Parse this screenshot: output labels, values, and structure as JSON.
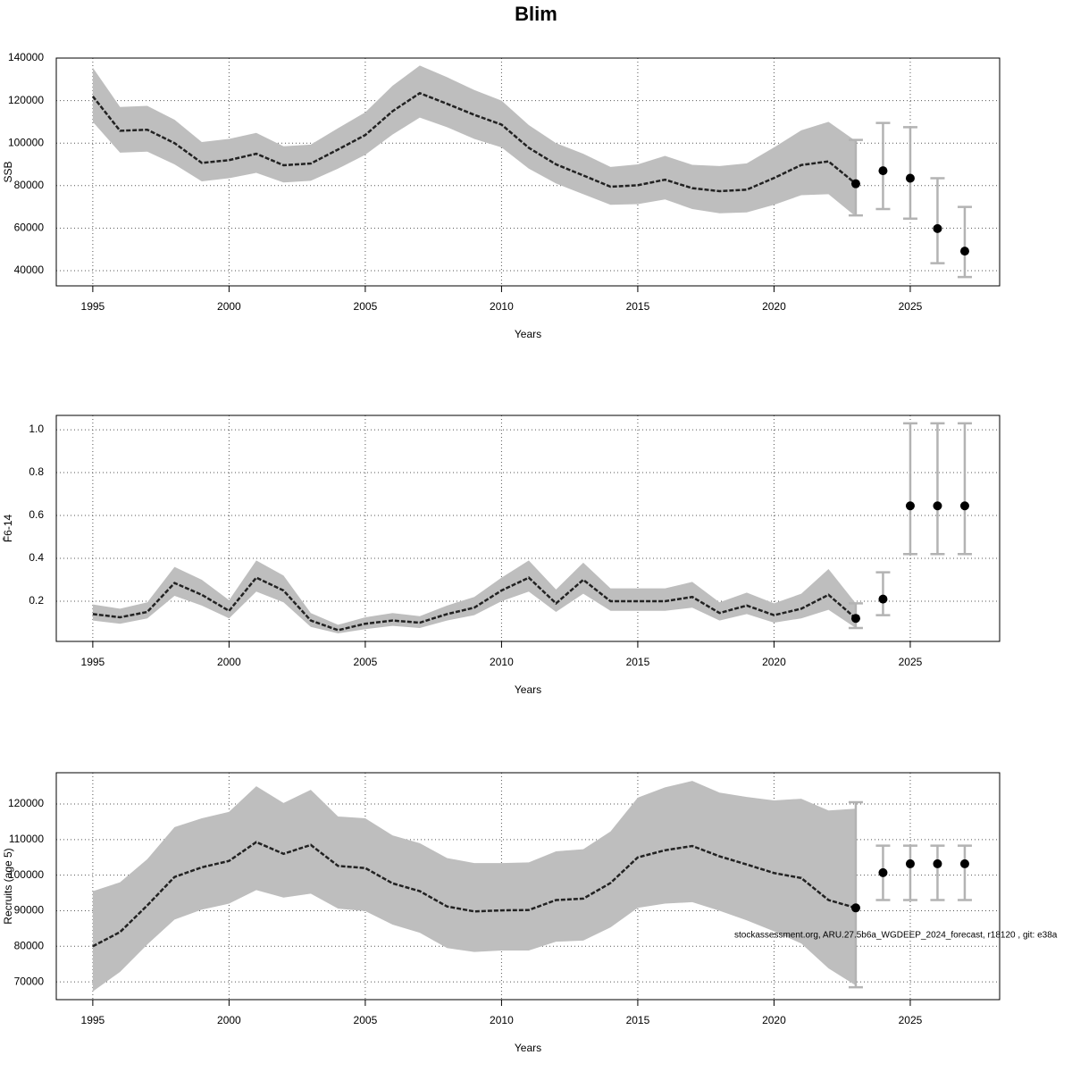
{
  "title": "Blim",
  "chart_data": [
    {
      "type": "line",
      "xlabel": "Years",
      "ylabel": "SSB",
      "x": [
        1995,
        1996,
        1997,
        1998,
        1999,
        2000,
        2001,
        2002,
        2003,
        2004,
        2005,
        2006,
        2007,
        2008,
        2009,
        2010,
        2011,
        2012,
        2013,
        2014,
        2015,
        2016,
        2017,
        2018,
        2019,
        2020,
        2021,
        2022,
        2023
      ],
      "values": [
        122000,
        105800,
        106300,
        100000,
        90700,
        92000,
        95000,
        89600,
        90400,
        97000,
        103800,
        115000,
        123500,
        118500,
        113300,
        108700,
        97800,
        90000,
        84800,
        79500,
        80200,
        82800,
        78800,
        77400,
        78100,
        83600,
        89700,
        91400,
        80900
      ],
      "upper": [
        135500,
        117000,
        117500,
        111000,
        100500,
        102000,
        104800,
        98500,
        99300,
        107000,
        114500,
        127000,
        136500,
        131000,
        125000,
        120000,
        108500,
        100000,
        95000,
        88800,
        90000,
        94000,
        89800,
        89200,
        90500,
        98000,
        106000,
        110000,
        101000
      ],
      "lower": [
        110000,
        95500,
        96000,
        90000,
        82000,
        83500,
        86000,
        81500,
        82300,
        88000,
        94500,
        104000,
        112000,
        107500,
        102000,
        98000,
        88000,
        81000,
        76000,
        71000,
        71300,
        73500,
        69000,
        67000,
        67400,
        71000,
        75500,
        76000,
        65500
      ],
      "forecast": {
        "x": [
          2023,
          2024,
          2025,
          2026,
          2027
        ],
        "values": [
          80900,
          87000,
          83500,
          59800,
          49200
        ],
        "lower": [
          66000,
          69000,
          64500,
          43500,
          37000
        ],
        "upper": [
          101500,
          109500,
          107500,
          83500,
          70000
        ]
      },
      "line_color": "#222222",
      "band_color": "#bebebe",
      "errorbar_color": "#b3b3b3",
      "point_color": "#000000",
      "xlim": [
        1993.66,
        2028.28
      ],
      "xticks": [
        1995,
        2000,
        2005,
        2010,
        2015,
        2020,
        2025
      ],
      "ylim": [
        32860,
        140000
      ],
      "yticks": [
        40000,
        60000,
        80000,
        100000,
        120000,
        140000
      ],
      "grid": true
    },
    {
      "type": "line",
      "xlabel": "Years",
      "ylabel": "F̄6-14",
      "x": [
        1995,
        1996,
        1997,
        1998,
        1999,
        2000,
        2001,
        2002,
        2003,
        2004,
        2005,
        2006,
        2007,
        2008,
        2009,
        2010,
        2011,
        2012,
        2013,
        2014,
        2015,
        2016,
        2017,
        2018,
        2019,
        2020,
        2021,
        2022,
        2023
      ],
      "values": [
        0.14,
        0.125,
        0.15,
        0.285,
        0.23,
        0.155,
        0.31,
        0.25,
        0.11,
        0.065,
        0.095,
        0.11,
        0.1,
        0.14,
        0.17,
        0.25,
        0.31,
        0.19,
        0.3,
        0.2,
        0.2,
        0.2,
        0.22,
        0.145,
        0.18,
        0.135,
        0.165,
        0.23,
        0.12
      ],
      "upper": [
        0.185,
        0.165,
        0.195,
        0.36,
        0.3,
        0.205,
        0.39,
        0.32,
        0.145,
        0.09,
        0.125,
        0.145,
        0.13,
        0.18,
        0.22,
        0.31,
        0.39,
        0.255,
        0.38,
        0.26,
        0.26,
        0.26,
        0.29,
        0.195,
        0.24,
        0.19,
        0.235,
        0.35,
        0.19
      ],
      "lower": [
        0.11,
        0.095,
        0.12,
        0.225,
        0.18,
        0.12,
        0.245,
        0.195,
        0.08,
        0.05,
        0.07,
        0.085,
        0.075,
        0.11,
        0.135,
        0.2,
        0.245,
        0.15,
        0.235,
        0.155,
        0.155,
        0.155,
        0.17,
        0.11,
        0.14,
        0.1,
        0.12,
        0.16,
        0.075
      ],
      "forecast": {
        "x": [
          2023,
          2024,
          2025,
          2026,
          2027
        ],
        "values": [
          0.12,
          0.21,
          0.645,
          0.645,
          0.645
        ],
        "lower": [
          0.075,
          0.135,
          0.42,
          0.42,
          0.42
        ],
        "upper": [
          0.19,
          0.335,
          1.03,
          1.03,
          1.03
        ]
      },
      "line_color": "#222222",
      "band_color": "#bebebe",
      "errorbar_color": "#b3b3b3",
      "point_color": "#000000",
      "xlim": [
        1993.66,
        2028.28
      ],
      "xticks": [
        1995,
        2000,
        2005,
        2010,
        2015,
        2020,
        2025
      ],
      "ylim": [
        0.0125,
        1.067
      ],
      "yticks": [
        0.2,
        0.4,
        0.6,
        0.8,
        {
          "value": 1,
          "label": "1.0"
        }
      ],
      "grid": true
    },
    {
      "type": "line",
      "xlabel": "Years",
      "ylabel": "Recruits (age 5)",
      "x": [
        1995,
        1996,
        1997,
        1998,
        1999,
        2000,
        2001,
        2002,
        2003,
        2004,
        2005,
        2006,
        2007,
        2008,
        2009,
        2010,
        2011,
        2012,
        2013,
        2014,
        2015,
        2016,
        2017,
        2018,
        2019,
        2020,
        2021,
        2022,
        2023
      ],
      "values": [
        80000,
        84000,
        91500,
        99500,
        102200,
        104000,
        109300,
        106000,
        108500,
        102600,
        102000,
        97700,
        95500,
        91200,
        89800,
        90100,
        90200,
        93000,
        93400,
        97800,
        105000,
        107000,
        108200,
        105300,
        103000,
        100600,
        99200,
        93000,
        90800
      ],
      "upper": [
        95500,
        98000,
        104500,
        113500,
        116000,
        117800,
        125000,
        120300,
        124000,
        116500,
        116000,
        111200,
        109000,
        104800,
        103400,
        103400,
        103600,
        106700,
        107300,
        112300,
        121800,
        124700,
        126500,
        123200,
        122000,
        121000,
        121500,
        118200,
        118700
      ],
      "lower": [
        67300,
        72800,
        80500,
        87500,
        90300,
        92000,
        95800,
        93700,
        94800,
        90600,
        89900,
        86100,
        83800,
        79500,
        78400,
        78800,
        78800,
        81300,
        81600,
        85300,
        90800,
        92000,
        92400,
        90000,
        87300,
        84200,
        80800,
        73800,
        69000
      ],
      "forecast": {
        "x": [
          2023,
          2024,
          2025,
          2026,
          2027
        ],
        "values": [
          90800,
          100700,
          103200,
          103200,
          103200
        ],
        "lower": [
          68500,
          93000,
          93000,
          93000,
          93000
        ],
        "upper": [
          120500,
          108300,
          108300,
          108300,
          108300
        ]
      },
      "line_color": "#222222",
      "band_color": "#bebebe",
      "errorbar_color": "#b3b3b3",
      "point_color": "#000000",
      "xlim": [
        1993.66,
        2028.28
      ],
      "xticks": [
        1995,
        2000,
        2005,
        2010,
        2015,
        2020,
        2025
      ],
      "ylim": [
        65000,
        128800
      ],
      "yticks": [
        70000,
        80000,
        90000,
        100000,
        110000,
        120000
      ],
      "grid": true,
      "annotation": "stockassessment.org, ARU.27.5b6a_WGDEEP_2024_forecast, r18120 , git: e38a"
    }
  ]
}
